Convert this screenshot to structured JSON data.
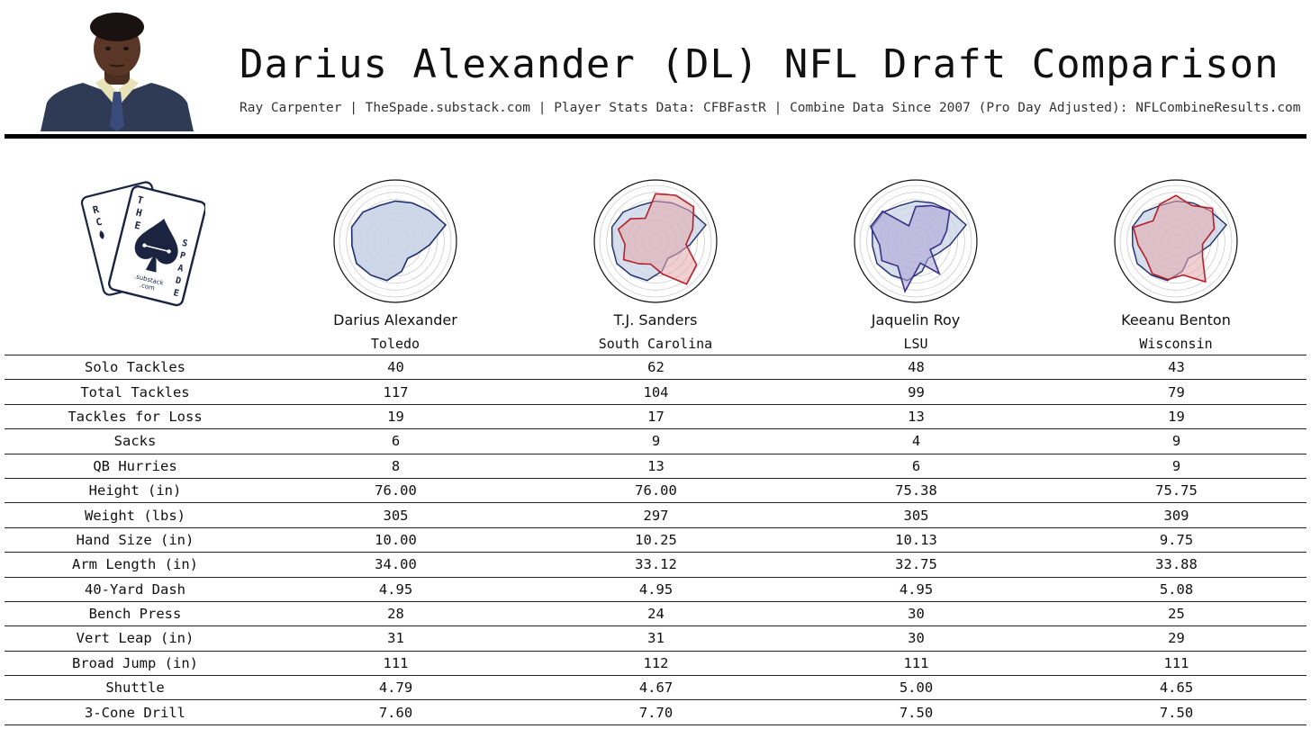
{
  "header": {
    "title": "Darius Alexander (DL) NFL Draft Comparison",
    "subtitle": "Ray Carpenter | TheSpade.substack.com | Player Stats Data: CFBFastR | Combine Data Since 2007 (Pro Day Adjusted): NFLCombineResults.com"
  },
  "logo": {
    "letters_left": [
      "R",
      "C"
    ],
    "letters_mid": [
      "T",
      "H",
      "E"
    ],
    "letters_right": [
      "S",
      "P",
      "A",
      "D",
      "E"
    ],
    "sub1": ".substack",
    "sub2": ".com"
  },
  "players": [
    {
      "name": "Darius Alexander",
      "school": "Toledo"
    },
    {
      "name": "T.J. Sanders",
      "school": "South Carolina"
    },
    {
      "name": "Jaquelin Roy",
      "school": "LSU"
    },
    {
      "name": "Keeanu Benton",
      "school": "Wisconsin"
    }
  ],
  "stats": [
    {
      "label": "Solo Tackles",
      "values": [
        "40",
        "62",
        "48",
        "43"
      ]
    },
    {
      "label": "Total Tackles",
      "values": [
        "117",
        "104",
        "99",
        "79"
      ]
    },
    {
      "label": "Tackles for Loss",
      "values": [
        "19",
        "17",
        "13",
        "19"
      ]
    },
    {
      "label": "Sacks",
      "values": [
        "6",
        "9",
        "4",
        "9"
      ]
    },
    {
      "label": "QB Hurries",
      "values": [
        "8",
        "13",
        "6",
        "9"
      ]
    },
    {
      "label": "Height (in)",
      "values": [
        "76.00",
        "76.00",
        "75.38",
        "75.75"
      ]
    },
    {
      "label": "Weight (lbs)",
      "values": [
        "305",
        "297",
        "305",
        "309"
      ]
    },
    {
      "label": "Hand Size (in)",
      "values": [
        "10.00",
        "10.25",
        "10.13",
        "9.75"
      ]
    },
    {
      "label": "Arm Length (in)",
      "values": [
        "34.00",
        "33.12",
        "32.75",
        "33.88"
      ]
    },
    {
      "label": "40-Yard Dash",
      "values": [
        "4.95",
        "4.95",
        "4.95",
        "5.08"
      ]
    },
    {
      "label": "Bench Press",
      "values": [
        "28",
        "24",
        "30",
        "25"
      ]
    },
    {
      "label": "Vert Leap (in)",
      "values": [
        "31",
        "31",
        "30",
        "29"
      ]
    },
    {
      "label": "Broad Jump (in)",
      "values": [
        "111",
        "112",
        "111",
        "111"
      ]
    },
    {
      "label": "Shuttle",
      "values": [
        "4.79",
        "4.67",
        "5.00",
        "4.65"
      ]
    },
    {
      "label": "3-Cone Drill",
      "values": [
        "7.60",
        "7.70",
        "7.50",
        "7.50"
      ]
    }
  ],
  "chart_data": {
    "type": "radar",
    "rlim": [
      0,
      1
    ],
    "axes_count": 15,
    "colors": {
      "base": "#1f2f6e",
      "base_fill": "#c9d3e6",
      "compare": "#b5202a",
      "compare_fill": "#e3a7ab",
      "roy": "#3a2f8a",
      "roy_fill": "#a9a3d6",
      "grid": "#bbbbbb",
      "frame": "#111111"
    },
    "series": [
      {
        "values": [
          0.72,
          0.75,
          0.82,
          0.95,
          0.62,
          0.45,
          0.38,
          0.55,
          0.72,
          0.75,
          0.8,
          0.78,
          0.82,
          0.78,
          0.7
        ]
      },
      {
        "values": [
          0.85,
          0.9,
          0.92,
          0.7,
          0.55,
          0.85,
          0.95,
          0.6,
          0.42,
          0.5,
          0.66,
          0.55,
          0.7,
          0.6,
          0.45
        ]
      },
      {
        "values": [
          0.62,
          0.7,
          0.82,
          0.58,
          0.45,
          0.3,
          0.72,
          0.4,
          0.92,
          0.55,
          0.7,
          0.65,
          0.85,
          0.8,
          0.3
        ]
      },
      {
        "values": [
          0.82,
          0.7,
          0.88,
          0.72,
          0.48,
          0.55,
          0.9,
          0.62,
          0.7,
          0.72,
          0.62,
          0.68,
          0.8,
          0.55,
          0.72
        ]
      }
    ]
  }
}
